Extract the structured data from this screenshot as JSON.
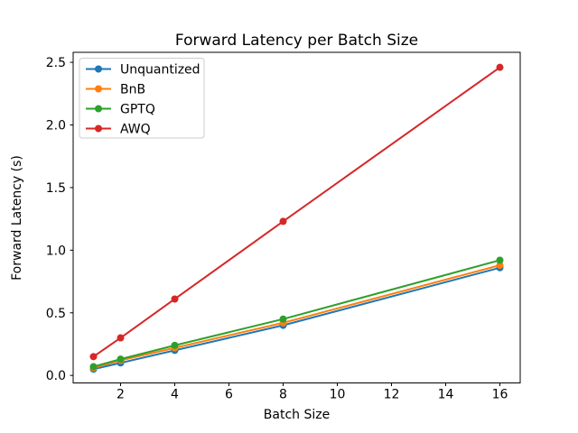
{
  "chart_data": {
    "type": "line",
    "title": "Forward Latency per Batch Size",
    "xlabel": "Batch Size",
    "ylabel": "Forward Latency (s)",
    "x": [
      1,
      2,
      4,
      8,
      16
    ],
    "series": [
      {
        "name": "Unquantized",
        "color": "#1f77b4",
        "values": [
          0.05,
          0.1,
          0.2,
          0.4,
          0.86
        ]
      },
      {
        "name": "BnB",
        "color": "#ff7f0e",
        "values": [
          0.06,
          0.12,
          0.22,
          0.42,
          0.88
        ]
      },
      {
        "name": "GPTQ",
        "color": "#2ca02c",
        "values": [
          0.07,
          0.13,
          0.24,
          0.45,
          0.92
        ]
      },
      {
        "name": "AWQ",
        "color": "#d62728",
        "values": [
          0.15,
          0.3,
          0.61,
          1.23,
          2.46
        ]
      }
    ],
    "xlim": [
      0.25,
      16.75
    ],
    "ylim": [
      -0.06,
      2.58
    ],
    "xticks": [
      2,
      4,
      6,
      8,
      10,
      12,
      14,
      16
    ],
    "xtick_labels": [
      "2",
      "4",
      "6",
      "8",
      "10",
      "12",
      "14",
      "16"
    ],
    "yticks": [
      0.0,
      0.5,
      1.0,
      1.5,
      2.0,
      2.5
    ],
    "ytick_labels": [
      "0.0",
      "0.5",
      "1.0",
      "1.5",
      "2.0",
      "2.5"
    ],
    "grid": false,
    "legend_position": "upper-left",
    "marker": "circle",
    "line_width": 2,
    "marker_radius": 4,
    "text_color": "#000000",
    "spine_color": "#000000",
    "legend_border_color": "#cccccc",
    "background": "#ffffff"
  }
}
